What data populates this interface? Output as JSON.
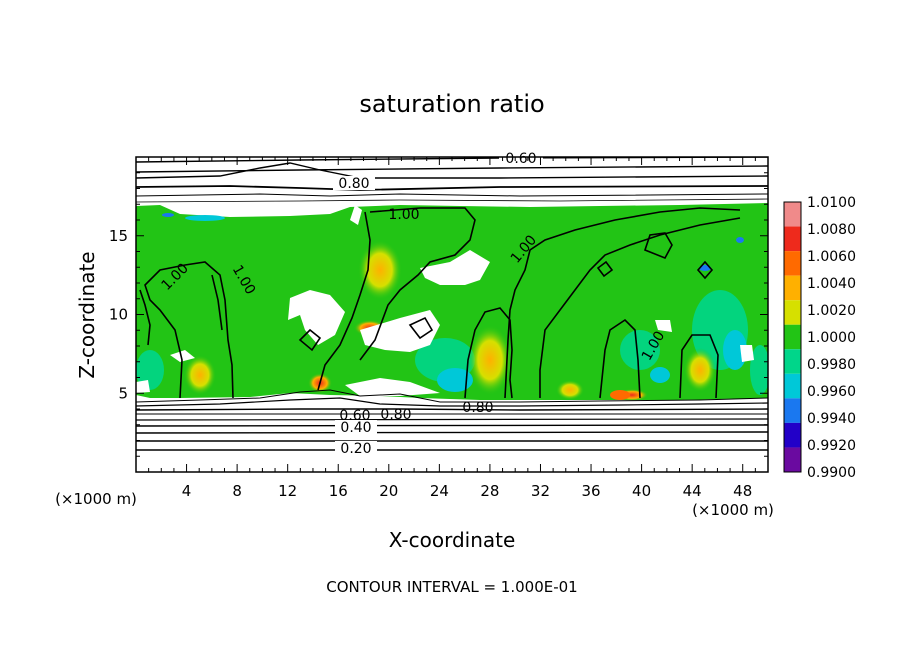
{
  "chart_data": {
    "type": "heatmap",
    "title": "saturation ratio",
    "xlabel": "X-coordinate",
    "ylabel": "Z-coordinate",
    "x_unit": "(×1000 m)",
    "z_unit": "(×1000 m)",
    "xlim": [
      0,
      50
    ],
    "ylim": [
      0,
      20
    ],
    "x_ticks": [
      "4",
      "8",
      "12",
      "16",
      "20",
      "24",
      "28",
      "32",
      "36",
      "40",
      "44",
      "48"
    ],
    "y_ticks": [
      "5",
      "10",
      "15"
    ],
    "footer": "CONTOUR INTERVAL = 1.000E-01",
    "colorbar": {
      "labels": [
        "1.0100",
        "1.0080",
        "1.0060",
        "1.0040",
        "1.0020",
        "1.0000",
        "0.9980",
        "0.9960",
        "0.9940",
        "0.9920",
        "0.9900"
      ],
      "colors": [
        "#f08a8a",
        "#ee2a1c",
        "#ff6a00",
        "#ffb000",
        "#d6e000",
        "#22c415",
        "#00d68a",
        "#00c8d8",
        "#1a78f0",
        "#2200c8",
        "#6a0aa0"
      ]
    },
    "contour_labels": [
      "0.60",
      "0.80",
      "1.00",
      "1.00",
      "1.00",
      "1.00",
      "1.00",
      "0.80",
      "0.80",
      "0.60",
      "0.40",
      "0.20"
    ]
  }
}
